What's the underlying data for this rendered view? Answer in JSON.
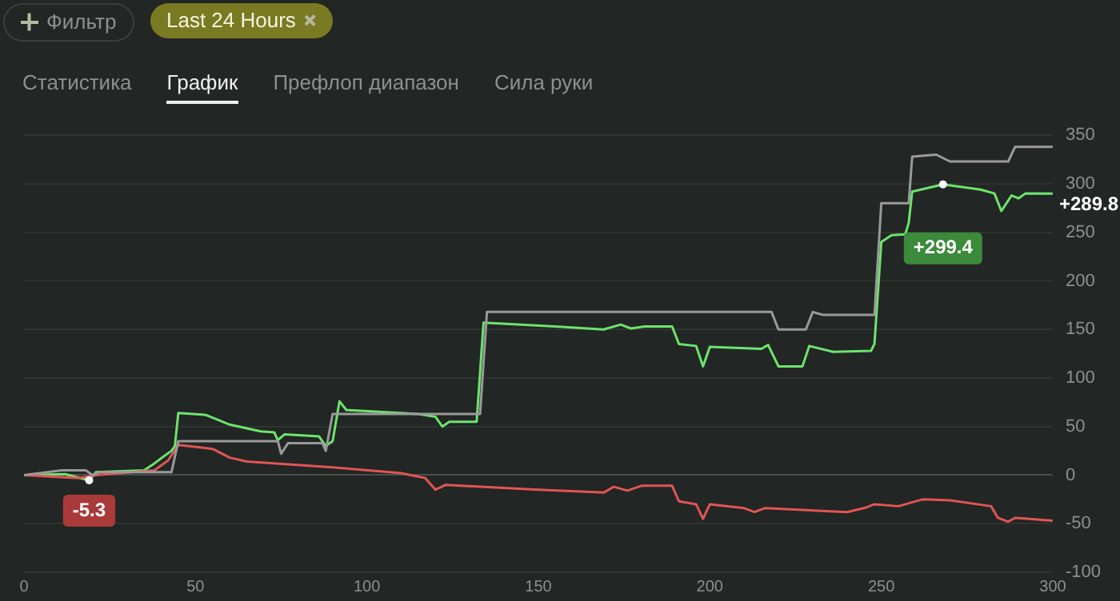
{
  "chart_data": {
    "type": "line",
    "xlim": [
      0,
      300
    ],
    "xticks": [
      0,
      50,
      100,
      150,
      200,
      250,
      300
    ],
    "ylim": [
      -100,
      350
    ],
    "yticks": [
      -100,
      -50,
      0,
      50,
      100,
      150,
      200,
      250,
      300,
      350
    ],
    "grid": "y",
    "legend": false,
    "marker": "none",
    "line_style": "solid",
    "series": [
      {
        "color": "#9a9a9a",
        "x": [
          0,
          11,
          18,
          20,
          22,
          43,
          45,
          74,
          75,
          77,
          87,
          88,
          90,
          133,
          135,
          218,
          220,
          228,
          230,
          233,
          248,
          250,
          258,
          259,
          266,
          270,
          287,
          289,
          300
        ],
        "values": [
          0,
          5,
          5,
          0,
          3,
          3,
          35,
          35,
          22,
          33,
          33,
          25,
          63,
          63,
          168,
          168,
          150,
          150,
          168,
          165,
          165,
          280,
          280,
          328,
          330,
          323,
          323,
          338,
          338
        ]
      },
      {
        "color": "#e05555",
        "x": [
          0,
          16,
          21,
          38,
          42,
          45,
          55,
          60,
          65,
          90,
          110,
          117,
          120,
          123,
          150,
          169,
          172,
          176,
          180,
          189,
          191,
          196,
          198,
          200,
          210,
          213,
          216,
          240,
          245,
          248,
          255,
          262,
          270,
          282,
          284,
          287,
          289,
          300
        ],
        "values": [
          0,
          -3,
          0,
          5,
          15,
          31,
          27,
          18,
          14,
          8,
          2,
          -3,
          -15,
          -10,
          -15,
          -18,
          -12,
          -16,
          -11,
          -11,
          -27,
          -30,
          -45,
          -30,
          -34,
          -38,
          -34,
          -38,
          -34,
          -30,
          -32,
          -25,
          -26,
          -32,
          -44,
          -48,
          -44,
          -47
        ]
      },
      {
        "color": "#6de36d",
        "x": [
          0,
          12,
          19,
          21,
          35,
          38,
          41,
          43,
          44,
          45,
          53,
          60,
          69,
          73,
          74,
          76,
          86,
          88,
          90,
          92,
          94,
          115,
          120,
          122,
          124,
          132,
          134,
          155,
          169,
          174,
          177,
          181,
          189,
          191,
          196,
          198,
          200,
          215,
          217,
          220,
          227,
          229,
          236,
          247,
          248,
          250,
          253,
          257,
          258,
          259,
          268,
          279,
          283,
          285,
          288,
          290,
          292,
          300
        ],
        "values": [
          0,
          1,
          -5.3,
          3,
          5,
          12,
          20,
          25,
          30,
          64,
          62,
          52,
          45,
          44,
          36,
          42,
          40,
          30,
          35,
          76,
          67,
          63,
          60,
          50,
          55,
          55,
          157,
          153,
          150,
          155,
          151,
          153,
          153,
          135,
          133,
          112,
          132,
          130,
          134,
          112,
          112,
          133,
          127,
          128,
          135,
          240,
          247,
          248,
          260,
          292,
          299.4,
          294,
          290,
          272,
          288,
          285,
          290,
          289.8
        ]
      }
    ],
    "annotations": [
      "Фильтр",
      "Last 24 Hours",
      "Статистика",
      "График",
      "Префлоп диапазон",
      "Сила руки",
      {
        "text": "-5.3",
        "x": 19,
        "y": -5.3
      },
      {
        "text": "+299.4",
        "x": 268,
        "y": 299.4
      },
      {
        "text": "+289.8",
        "x": 300,
        "y": 289.8
      }
    ]
  }
}
